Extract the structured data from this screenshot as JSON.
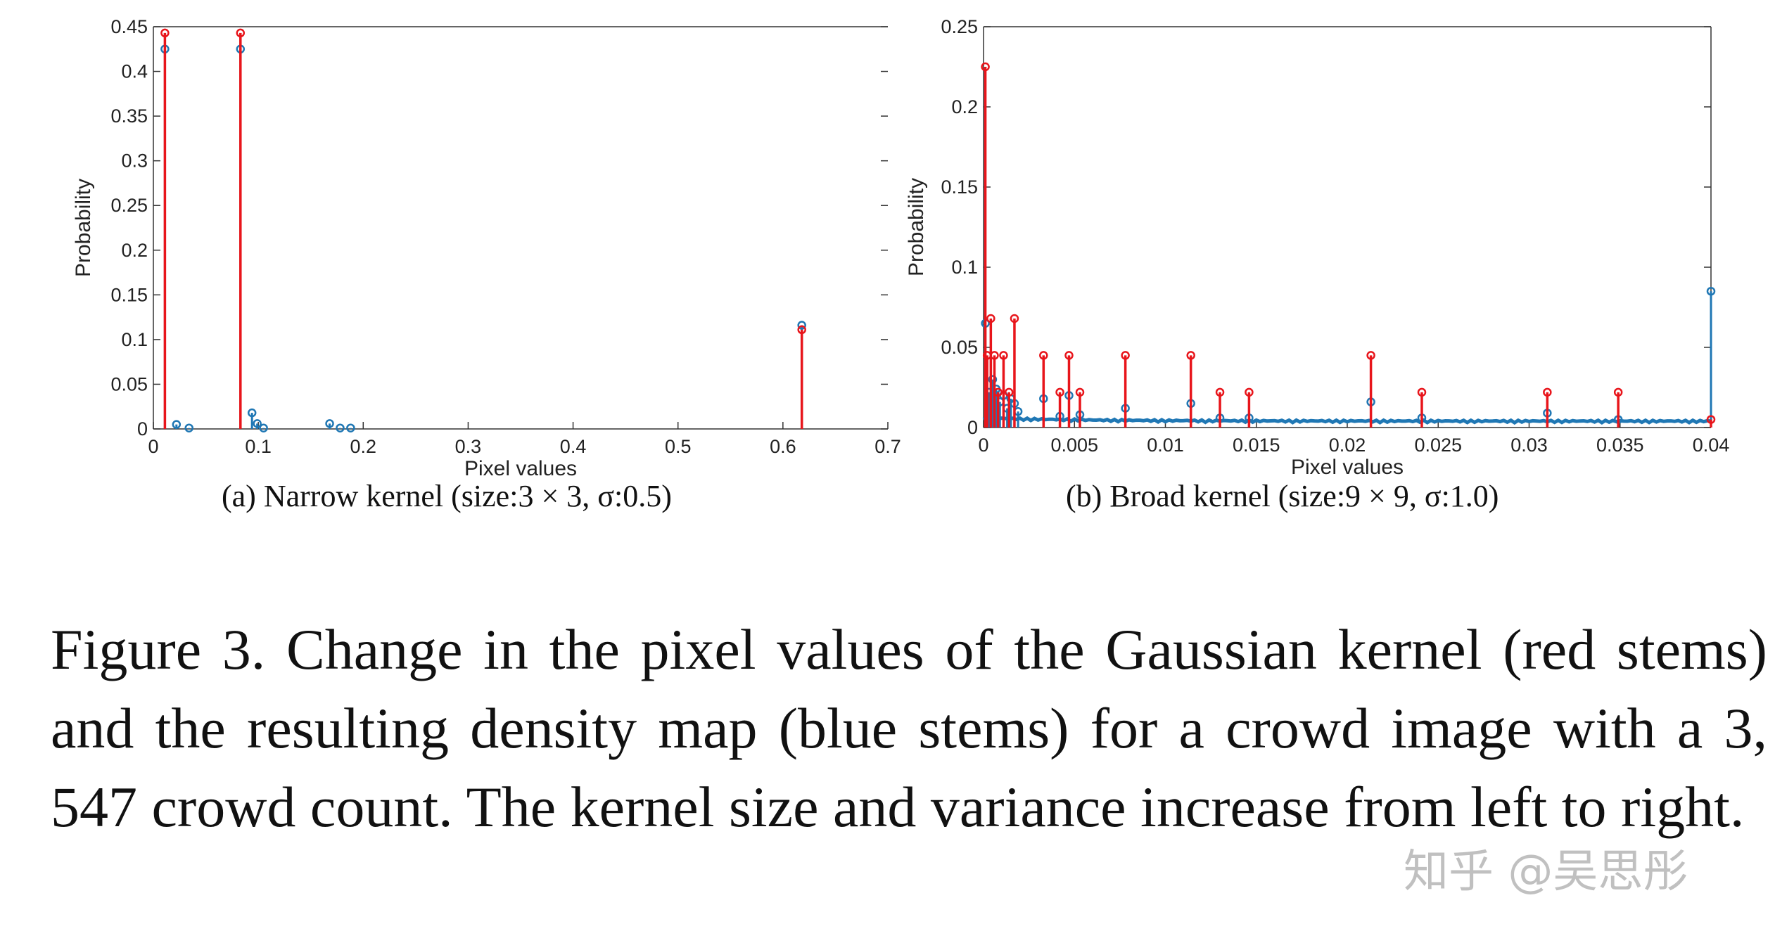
{
  "chart_data": [
    {
      "type": "stem",
      "title": "",
      "subcaption": "(a) Narrow kernel (size:3 × 3, σ:0.5)",
      "xlabel": "Pixel values",
      "ylabel": "Probability",
      "xlim": [
        0,
        0.7
      ],
      "ylim": [
        0,
        0.45
      ],
      "xticks": [
        "0",
        "0.1",
        "0.2",
        "0.3",
        "0.4",
        "0.5",
        "0.6",
        "0.7"
      ],
      "yticks": [
        "0",
        "0.05",
        "0.1",
        "0.15",
        "0.2",
        "0.25",
        "0.3",
        "0.35",
        "0.4",
        "0.45"
      ],
      "series": [
        {
          "name": "Density map (blue stems)",
          "color": "#1f77b4",
          "x": [
            0.011,
            0.022,
            0.034,
            0.083,
            0.094,
            0.099,
            0.105,
            0.168,
            0.178,
            0.188,
            0.618
          ],
          "y": [
            0.425,
            0.005,
            0.001,
            0.425,
            0.018,
            0.006,
            0.001,
            0.006,
            0.001,
            0.001,
            0.116
          ]
        },
        {
          "name": "Gaussian kernel (red stems)",
          "color": "#e8151b",
          "x": [
            0.011,
            0.083,
            0.618
          ],
          "y": [
            0.443,
            0.443,
            0.111
          ]
        }
      ]
    },
    {
      "type": "stem",
      "title": "",
      "subcaption": "(b) Broad kernel (size:9 × 9, σ:1.0)",
      "xlabel": "Pixel values",
      "ylabel": "Probability",
      "xlim": [
        0,
        0.04
      ],
      "ylim": [
        0,
        0.25
      ],
      "xticks": [
        "0",
        "0.005",
        "0.01",
        "0.015",
        "0.02",
        "0.025",
        "0.03",
        "0.035",
        "0.04"
      ],
      "yticks": [
        "0",
        "0.05",
        "0.1",
        "0.15",
        "0.2",
        "0.25"
      ],
      "series": [
        {
          "name": "Density map (blue stems)",
          "color": "#1f77b4",
          "x": [
            0.0001,
            0.0003,
            0.0005,
            0.0007,
            0.0009,
            0.0011,
            0.0013,
            0.0015,
            0.0017,
            0.0019,
            0.0033,
            0.0042,
            0.0047,
            0.0053,
            0.0078,
            0.0114,
            0.013,
            0.0146,
            0.0213,
            0.0241,
            0.031,
            0.0349,
            0.04
          ],
          "y": [
            0.065,
            0.022,
            0.03,
            0.024,
            0.016,
            0.02,
            0.012,
            0.018,
            0.015,
            0.01,
            0.018,
            0.007,
            0.02,
            0.008,
            0.012,
            0.015,
            0.006,
            0.006,
            0.016,
            0.006,
            0.009,
            0.005,
            0.085
          ]
        },
        {
          "name": "Gaussian kernel (red stems)",
          "color": "#e8151b",
          "x": [
            0.0001,
            0.0002,
            0.0004,
            0.0006,
            0.0008,
            0.0011,
            0.0014,
            0.0017,
            0.0033,
            0.0042,
            0.0047,
            0.0053,
            0.0078,
            0.0114,
            0.013,
            0.0146,
            0.0213,
            0.0241,
            0.031,
            0.0349,
            0.04
          ],
          "y": [
            0.225,
            0.045,
            0.068,
            0.045,
            0.022,
            0.045,
            0.022,
            0.068,
            0.045,
            0.022,
            0.045,
            0.022,
            0.045,
            0.045,
            0.022,
            0.022,
            0.045,
            0.022,
            0.022,
            0.022,
            0.005
          ]
        }
      ]
    }
  ],
  "caption": "Figure 3. Change in the pixel values of the Gaussian kernel (red stems) and the resulting density map (blue stems) for a crowd image with a 3, 547 crowd count. The kernel size and variance increase from left to right.",
  "watermark": "知乎 @吴思彤"
}
